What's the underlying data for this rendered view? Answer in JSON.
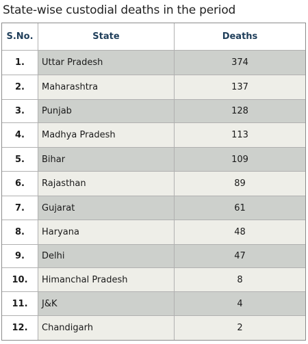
{
  "title": "State-wise custodial deaths in the period",
  "table": {
    "headers": [
      "S.No.",
      "State",
      "Deaths"
    ],
    "rows": [
      {
        "sno": "1.",
        "state": "Uttar Pradesh",
        "deaths": "374"
      },
      {
        "sno": "2.",
        "state": "Maharashtra",
        "deaths": "137"
      },
      {
        "sno": "3.",
        "state": "Punjab",
        "deaths": "128"
      },
      {
        "sno": "4.",
        "state": "Madhya Pradesh",
        "deaths": "113"
      },
      {
        "sno": "5.",
        "state": "Bihar",
        "deaths": "109"
      },
      {
        "sno": "6.",
        "state": "Rajasthan",
        "deaths": "89"
      },
      {
        "sno": "7.",
        "state": "Gujarat",
        "deaths": "61"
      },
      {
        "sno": "8.",
        "state": "Haryana",
        "deaths": "48"
      },
      {
        "sno": "9.",
        "state": "Delhi",
        "deaths": "47"
      },
      {
        "sno": "10.",
        "state": "Himanchal Pradesh",
        "deaths": "8"
      },
      {
        "sno": "11.",
        "state": "J&K",
        "deaths": "4"
      },
      {
        "sno": "12.",
        "state": "Chandigarh",
        "deaths": "2"
      }
    ]
  },
  "colors": {
    "header_text": "#1f3e5a",
    "row_dark": "#cdd0cc",
    "row_light": "#eeeee8"
  }
}
